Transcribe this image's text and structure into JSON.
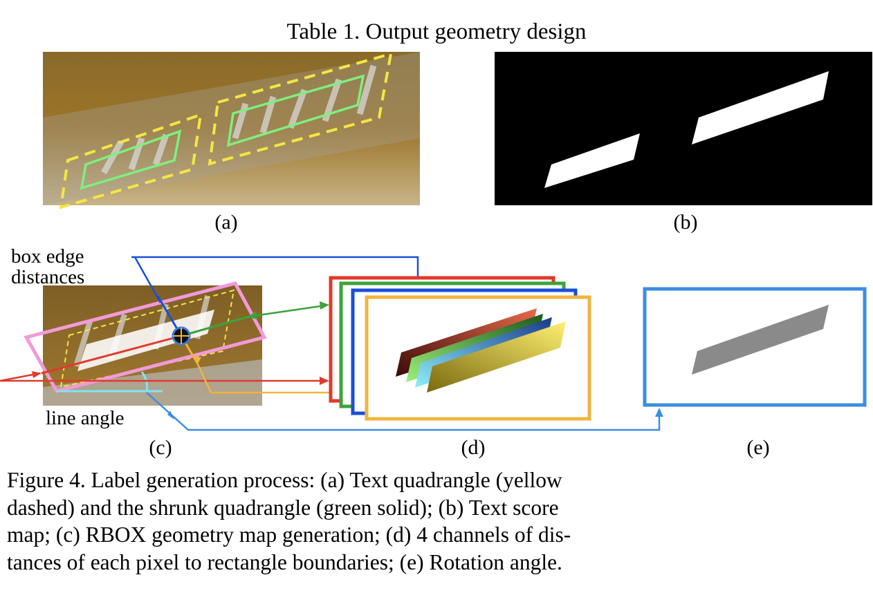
{
  "table_title": "Table 1. Output geometry design",
  "panels": {
    "a": "(a)",
    "b": "(b)",
    "c": "(c)",
    "d": "(d)",
    "e": "(e)"
  },
  "annotations": {
    "box_edge_line1": "box edge",
    "box_edge_line2": "distances",
    "line_angle": "line angle"
  },
  "caption": {
    "line1": "Figure 4. Label generation process: (a) Text quadrangle (yellow",
    "line2": "dashed) and the shrunk quadrangle (green solid); (b) Text score",
    "line3": "map; (c) RBOX geometry map generation; (d) 4 channels of dis-",
    "line4": "tances of each pixel to rectangle boundaries; (e) Rotation angle."
  },
  "colors": {
    "yellow_dashed": "#f5e642",
    "green_solid": "#7ef07e",
    "pink_box": "#f29ad8",
    "red": "#e03a2c",
    "green": "#3ca33c",
    "blue": "#1a4fd6",
    "orange": "#f0b440",
    "light_blue": "#3c8ee0",
    "cyan": "#7fe6f0"
  }
}
